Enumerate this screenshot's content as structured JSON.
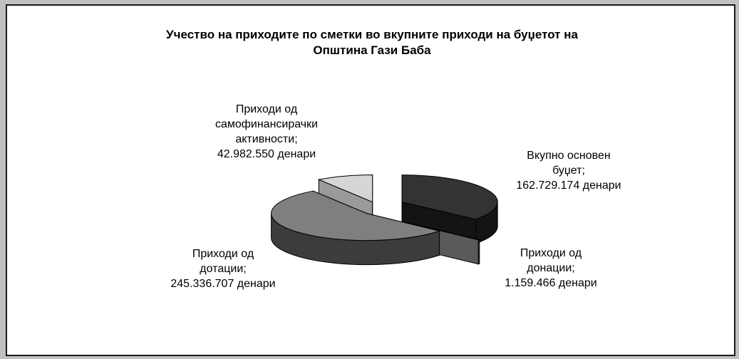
{
  "chart_data": {
    "type": "pie",
    "style": "3d-exploded",
    "title": "Учество на приходите по сметки во вкупните приходи на буџетот на Општина Гази Баба",
    "title_lines": [
      "Учество на приходите по сметки во вкупните приходи на буџетот на",
      "Општина Гази Баба"
    ],
    "unit": "денари",
    "slices": [
      {
        "category": "Вкупно основен буџет",
        "value": 162729174,
        "label_lines": [
          "Вкупно основен",
          "буџет;",
          "162.729.174 денари"
        ],
        "color_top": "#333333",
        "color_side": "#141414"
      },
      {
        "category": "Приходи од донации",
        "value": 1159466,
        "label_lines": [
          "Приходи од",
          "донации;",
          "1.159.466 денари"
        ],
        "color_top": "#808080",
        "color_side": "#5a5a5a"
      },
      {
        "category": "Приходи од дотации",
        "value": 245336707,
        "label_lines": [
          "Приходи од",
          "дотации;",
          "245.336.707 денари"
        ],
        "color_top": "#7f7f7f",
        "color_side": "#3c3c3c"
      },
      {
        "category": "Приходи од самофинансирачки активности",
        "value": 42982550,
        "label_lines": [
          "Приходи од",
          "самофинансирачки",
          "активности;",
          "42.982.550 денари"
        ],
        "color_top": "#d6d6d6",
        "color_side": "#9a9a9a"
      }
    ],
    "legend": "none",
    "grid": false
  }
}
